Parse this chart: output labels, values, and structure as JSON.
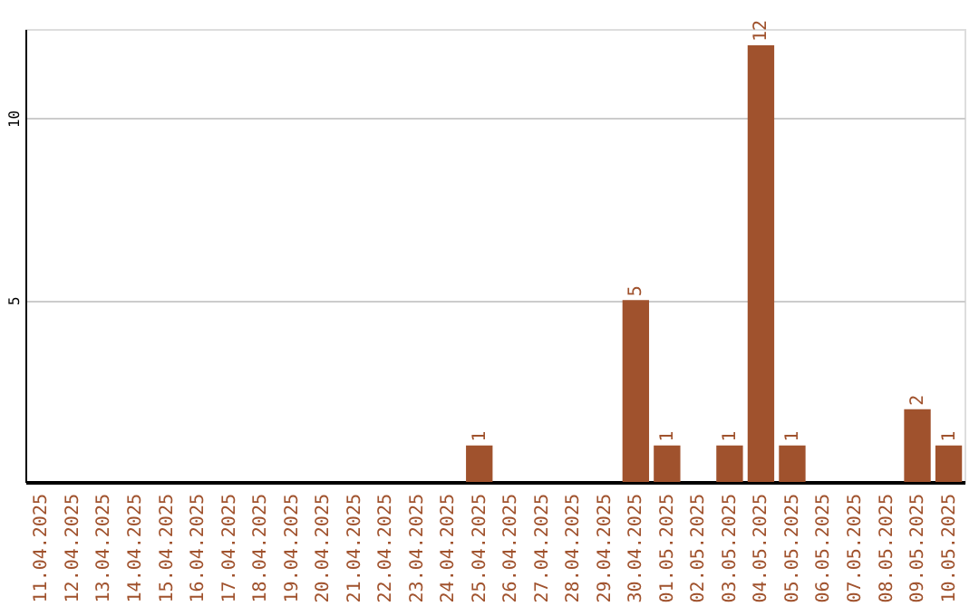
{
  "chart_data": {
    "type": "bar",
    "categories": [
      "11.04.2025",
      "12.04.2025",
      "13.04.2025",
      "14.04.2025",
      "15.04.2025",
      "16.04.2025",
      "17.04.2025",
      "18.04.2025",
      "19.04.2025",
      "20.04.2025",
      "21.04.2025",
      "22.04.2025",
      "23.04.2025",
      "24.04.2025",
      "25.04.2025",
      "26.04.2025",
      "27.04.2025",
      "28.04.2025",
      "29.04.2025",
      "30.04.2025",
      "01.05.2025",
      "02.05.2025",
      "03.05.2025",
      "04.05.2025",
      "05.05.2025",
      "06.05.2025",
      "07.05.2025",
      "08.05.2025",
      "09.05.2025",
      "10.05.2025"
    ],
    "values": [
      0,
      0,
      0,
      0,
      0,
      0,
      0,
      0,
      0,
      0,
      0,
      0,
      0,
      0,
      1,
      0,
      0,
      0,
      0,
      5,
      1,
      0,
      1,
      12,
      1,
      0,
      0,
      0,
      2,
      1
    ],
    "value_labels": [
      null,
      null,
      null,
      null,
      null,
      null,
      null,
      null,
      null,
      null,
      null,
      null,
      null,
      null,
      "1",
      null,
      null,
      null,
      null,
      "5",
      "1",
      null,
      "1",
      "12",
      "1",
      null,
      null,
      null,
      "2",
      "1"
    ],
    "color": "#a0522d",
    "ylim": [
      0,
      12.45
    ],
    "yticks": [
      5,
      10
    ],
    "grid": "y"
  }
}
